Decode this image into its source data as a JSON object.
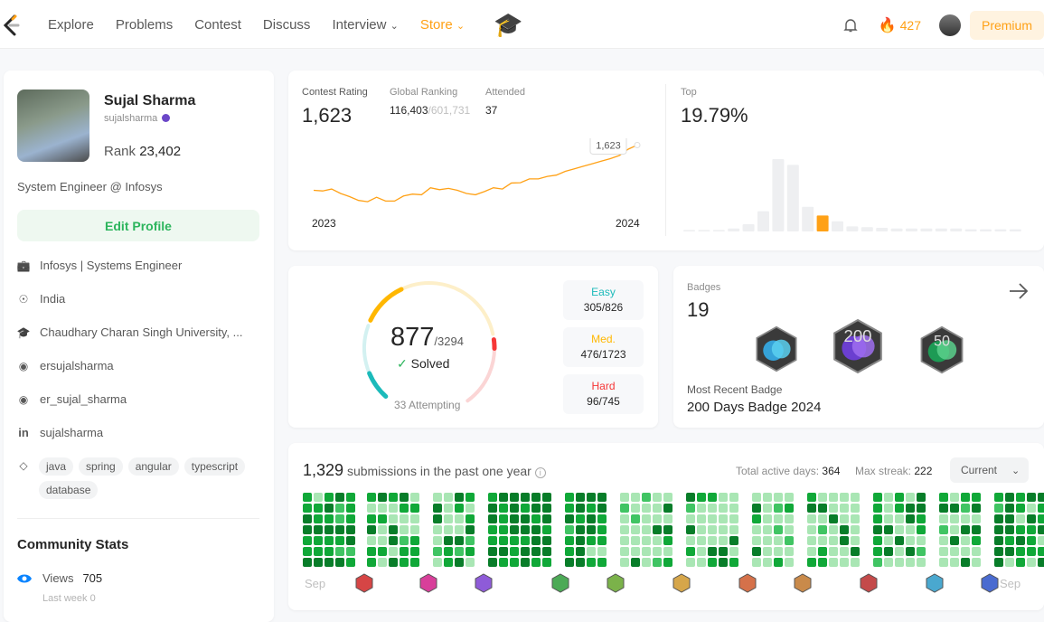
{
  "nav": {
    "links": [
      "Explore",
      "Problems",
      "Contest",
      "Discuss",
      "Interview",
      "Store"
    ],
    "streak": "427",
    "premium": "Premium",
    "accent": "#ffa116"
  },
  "profile": {
    "name": "Sujal Sharma",
    "username": "sujalsharma",
    "rank_label": "Rank",
    "rank": "23,402",
    "bio": "System Engineer @ Infosys",
    "edit": "Edit Profile",
    "info": [
      {
        "icon": "briefcase-icon",
        "text": "Infosys | Systems Engineer"
      },
      {
        "icon": "location-icon",
        "text": "India"
      },
      {
        "icon": "graduation-cap-icon",
        "text": "Chaudhary Charan Singh University, ..."
      },
      {
        "icon": "github-icon",
        "text": "ersujalsharma"
      },
      {
        "icon": "twitter-icon",
        "text": "er_sujal_sharma"
      },
      {
        "icon": "linkedin-icon",
        "text": "sujalsharma"
      }
    ],
    "skills": [
      "java",
      "spring",
      "angular",
      "typescript",
      "database"
    ],
    "community_title": "Community Stats",
    "views_label": "Views",
    "views": "705",
    "last_week_label": "Last week",
    "last_week": "0"
  },
  "contest": {
    "rating_label": "Contest Rating",
    "rating": "1,623",
    "global_label": "Global Ranking",
    "global_rank": "116,403",
    "global_total": "/601,731",
    "attended_label": "Attended",
    "attended": "37",
    "tooltip": "1,623",
    "x_start": "2023",
    "x_end": "2024",
    "top_label": "Top",
    "top": "19.79%",
    "line_color": "#ffa116",
    "rating_history": [
      1480,
      1478,
      1484,
      1470,
      1460,
      1448,
      1444,
      1458,
      1446,
      1446,
      1462,
      1468,
      1466,
      1488,
      1482,
      1486,
      1480,
      1470,
      1466,
      1476,
      1488,
      1484,
      1503,
      1504,
      1516,
      1516,
      1524,
      1528,
      1540,
      1548,
      1556,
      1564,
      1572,
      1580,
      1590,
      1610,
      1623
    ],
    "histogram": [
      2,
      2,
      2,
      4,
      10,
      28,
      100,
      92,
      34,
      22,
      14,
      7,
      6,
      5,
      4,
      4,
      4,
      4,
      4,
      3,
      3,
      3,
      3
    ],
    "highlight_index": 9
  },
  "solved": {
    "solved": "877",
    "total": "/3294",
    "solved_label": "Solved",
    "attempting": "33 Attempting",
    "difficulties": [
      {
        "label": "Easy",
        "value": "305/826",
        "solved": 305,
        "total": 826,
        "color": "#1cbaba",
        "light": "#d3f1f1"
      },
      {
        "label": "Med.",
        "value": "476/1723",
        "solved": 476,
        "total": 1723,
        "color": "#ffb700",
        "light": "#fdefc9"
      },
      {
        "label": "Hard",
        "value": "96/745",
        "solved": 96,
        "total": 745,
        "color": "#f63737",
        "light": "#fbd5d5"
      }
    ]
  },
  "badges": {
    "label": "Badges",
    "count": "19",
    "recent_label": "Most Recent Badge",
    "recent": "200 Days Badge 2024",
    "items": [
      {
        "name": "daily-badge",
        "colors": [
          "#35a2d8",
          "#5bd0f0"
        ]
      },
      {
        "name": "200-days-badge",
        "colors": [
          "#6b3fd0",
          "#9f6ff0"
        ],
        "text": "200"
      },
      {
        "name": "50-days-badge",
        "colors": [
          "#1d9b55",
          "#5ad08c"
        ],
        "text": "50"
      }
    ]
  },
  "submissions": {
    "count": "1,329",
    "label": "submissions in the past one year",
    "active_label": "Total active days:",
    "active": "364",
    "streak_label": "Max streak:",
    "streak": "222",
    "select": "Current",
    "month_start": "Sep",
    "month_end": "Sep",
    "levels_colors": [
      "#f0f0f0",
      "#a9e6b4",
      "#40c463",
      "#10a838",
      "#087d29"
    ],
    "month_badge_colors": [
      "#d64545",
      "#d83f9a",
      "#8e5bd8",
      "#4caa56",
      "#7bb24a",
      "#d6a64a",
      "#d5714a",
      "#c98a4a",
      "#c44a4a",
      "#4aa8cf",
      "#4a6bd0"
    ]
  }
}
